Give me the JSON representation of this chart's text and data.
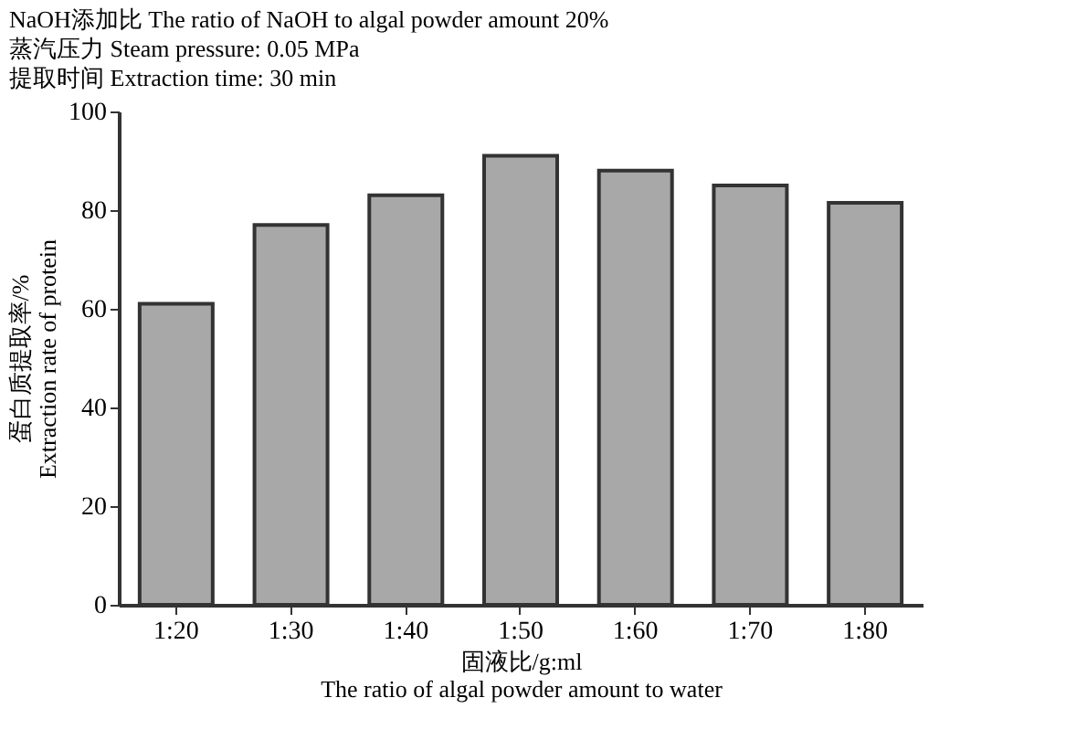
{
  "chart_data": {
    "type": "bar",
    "categories": [
      "1:20",
      "1:30",
      "1:40",
      "1:50",
      "1:60",
      "1:70",
      "1:80"
    ],
    "values": [
      61,
      77,
      83,
      91,
      88,
      85,
      81.5
    ],
    "color": "#a8a8a8",
    "ylabel": [
      "蛋白质提取率/%",
      "Extraction rate of protein"
    ],
    "xlabel": [
      "固液比/g:ml",
      "The ratio of algal powder amount to water"
    ],
    "annotations": [
      "NaOH添加比 The ratio of NaOH to algal powder amount 20%",
      "蒸汽压力 Steam pressure: 0.05 MPa",
      "提取时间 Extraction time: 30 min"
    ],
    "ylim": [
      0,
      100
    ],
    "yticks": [
      0,
      20,
      40,
      60,
      80,
      100
    ],
    "grid": false
  }
}
